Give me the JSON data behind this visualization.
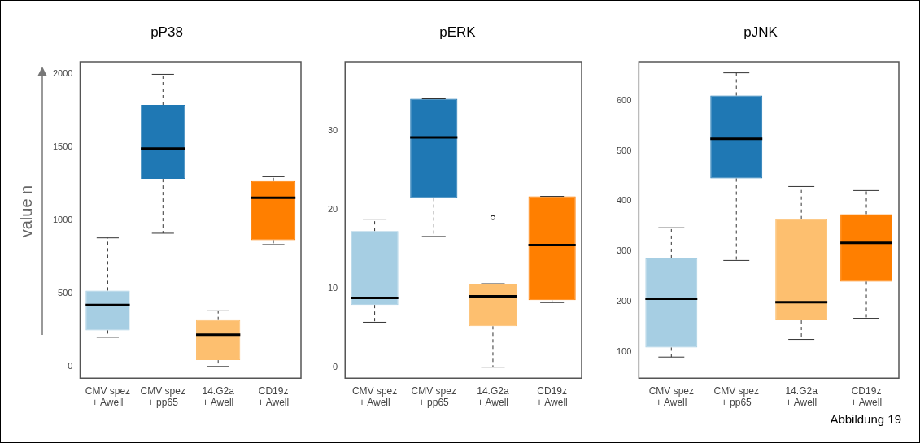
{
  "chart_data": [
    {
      "type": "box",
      "title": "pP38",
      "ylabel": "value n",
      "categories": [
        "CMV spez + Awell",
        "CMV spez + pp65",
        "14.G2a + Awell",
        "CD19z + Awell"
      ],
      "colors": [
        "#a6cee3",
        "#1f78b4",
        "#fdbf6f",
        "#ff7f00"
      ],
      "ylim": [
        -80,
        2086
      ],
      "yticks": [
        0,
        500,
        1000,
        1500,
        2000
      ],
      "grid": false,
      "boxes": [
        {
          "low": 200,
          "q1": 247,
          "median": 421,
          "q3": 520,
          "high": 880
        },
        {
          "low": 912,
          "q1": 1284,
          "median": 1492,
          "q3": 1791,
          "high": 2000
        },
        {
          "low": 0,
          "q1": 43,
          "median": 217,
          "q3": 318,
          "high": 381
        },
        {
          "low": 834,
          "q1": 865,
          "median": 1155,
          "q3": 1269,
          "high": 1299
        }
      ]
    },
    {
      "type": "box",
      "title": "pERK",
      "categories": [
        "CMV spez + Awell",
        "CMV spez + pp65",
        "14.G2a + Awell",
        "CD19z + Awell"
      ],
      "colors": [
        "#a6cee3",
        "#1f78b4",
        "#fdbf6f",
        "#ff7f00"
      ],
      "ylim": [
        -1.4,
        38.8
      ],
      "yticks": [
        0,
        10,
        20,
        30
      ],
      "grid": false,
      "boxes": [
        {
          "low": 5.7,
          "q1": 7.9,
          "median": 8.8,
          "q3": 17.3,
          "high": 18.8
        },
        {
          "low": 16.6,
          "q1": 21.5,
          "median": 29.2,
          "q3": 34.1,
          "high": 34.1
        },
        {
          "low": 0,
          "q1": 5.2,
          "median": 9.0,
          "q3": 10.6,
          "high": 10.6,
          "outliers": [
            19.0
          ]
        },
        {
          "low": 8.2,
          "q1": 8.5,
          "median": 15.5,
          "q3": 21.7,
          "high": 21.7
        }
      ]
    },
    {
      "type": "box",
      "title": "pJNK",
      "categories": [
        "CMV spez + Awell",
        "CMV spez + pp65",
        "14.G2a + Awell",
        "CD19z + Awell"
      ],
      "colors": [
        "#a6cee3",
        "#1f78b4",
        "#fdbf6f",
        "#ff7f00"
      ],
      "ylim": [
        48,
        677
      ],
      "yticks": [
        100,
        200,
        300,
        400,
        500,
        600
      ],
      "grid": false,
      "annotations": [
        "Abbildung 19"
      ],
      "boxes": [
        {
          "low": 90,
          "q1": 109,
          "median": 206,
          "q3": 286,
          "high": 347
        },
        {
          "low": 282,
          "q1": 445,
          "median": 524,
          "q3": 610,
          "high": 655
        },
        {
          "low": 125,
          "q1": 163,
          "median": 199,
          "q3": 364,
          "high": 429
        },
        {
          "low": 167,
          "q1": 240,
          "median": 317,
          "q3": 374,
          "high": 421
        }
      ]
    }
  ]
}
